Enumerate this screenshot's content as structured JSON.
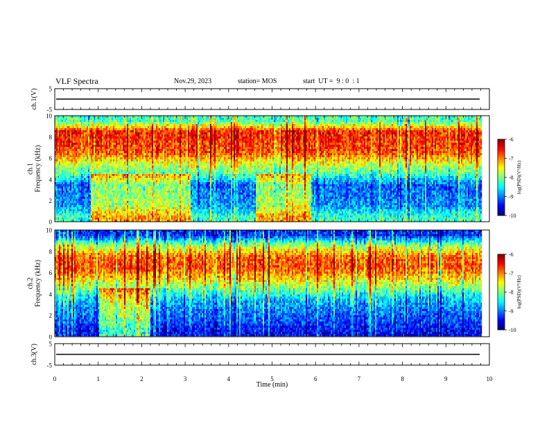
{
  "header": {
    "title": "VLF Spectra",
    "date": "Nov.29, 2023",
    "station": "station= MOS",
    "start": "start  UT =  9 : 0  : 1"
  },
  "chart_data": [
    {
      "type": "line",
      "panel": "ch1-waveform",
      "ylabel": "ch.1(V)",
      "ylim": [
        -5,
        5
      ],
      "yticks": [
        "5",
        "-5"
      ],
      "series": [
        {
          "values": [
            0
          ]
        }
      ]
    },
    {
      "type": "heatmap",
      "panel": "ch1-spectrogram",
      "ylabel": "ch.1\nFrequency (kHz)",
      "ylim": [
        0,
        10
      ],
      "yticks": [
        "0",
        "2",
        "4",
        "6",
        "8",
        "10"
      ],
      "xlim": [
        0,
        9.83
      ],
      "colorbar": {
        "label": "log(PSD)(V²/Hz)",
        "range": [
          -10,
          -6
        ],
        "ticks": [
          "-6",
          "-7",
          "-8",
          "-9",
          "-10"
        ]
      },
      "profile_freq_khz": [
        0.5,
        1.5,
        2.5,
        3.5,
        4.5,
        5.5,
        6.5,
        7.5,
        8.5,
        9.5
      ],
      "profile_log_psd": [
        -8.3,
        -8.9,
        -9.0,
        -9.1,
        -8.2,
        -7.6,
        -6.8,
        -6.7,
        -6.6,
        -8.2
      ],
      "enhanced_low_freq_intervals_min": [
        [
          0.8,
          3.1
        ],
        [
          4.6,
          5.9
        ]
      ]
    },
    {
      "type": "heatmap",
      "panel": "ch2-spectrogram",
      "ylabel": "ch.2\nFrequency (kHz)",
      "ylim": [
        0,
        10
      ],
      "yticks": [
        "0",
        "2",
        "4",
        "6",
        "8",
        "10"
      ],
      "xlim": [
        0,
        9.83
      ],
      "colorbar": {
        "label": "log(PSD)(V²/Hz)",
        "range": [
          -10,
          -6
        ],
        "ticks": [
          "-6",
          "-7",
          "-8",
          "-9",
          "-10"
        ]
      },
      "profile_freq_khz": [
        0.5,
        1.5,
        2.5,
        3.5,
        4.5,
        5.5,
        6.5,
        7.5,
        8.5,
        9.5
      ],
      "profile_log_psd": [
        -9.5,
        -9.2,
        -9.0,
        -8.7,
        -8.0,
        -7.3,
        -6.8,
        -6.9,
        -7.8,
        -9.3
      ],
      "enhanced_low_freq_intervals_min": [
        [
          1.0,
          2.2
        ]
      ]
    },
    {
      "type": "line",
      "panel": "ch3-waveform",
      "ylabel": "ch.3(V)",
      "ylim": [
        -5,
        5
      ],
      "yticks": [
        "5",
        "-5"
      ],
      "series": [
        {
          "values": [
            0
          ]
        }
      ]
    }
  ],
  "x_axis": {
    "label": "Time  (min)",
    "range": [
      0,
      10
    ],
    "ticks": [
      "0",
      "1",
      "2",
      "3",
      "4",
      "5",
      "6",
      "7",
      "8",
      "9",
      "10"
    ]
  }
}
